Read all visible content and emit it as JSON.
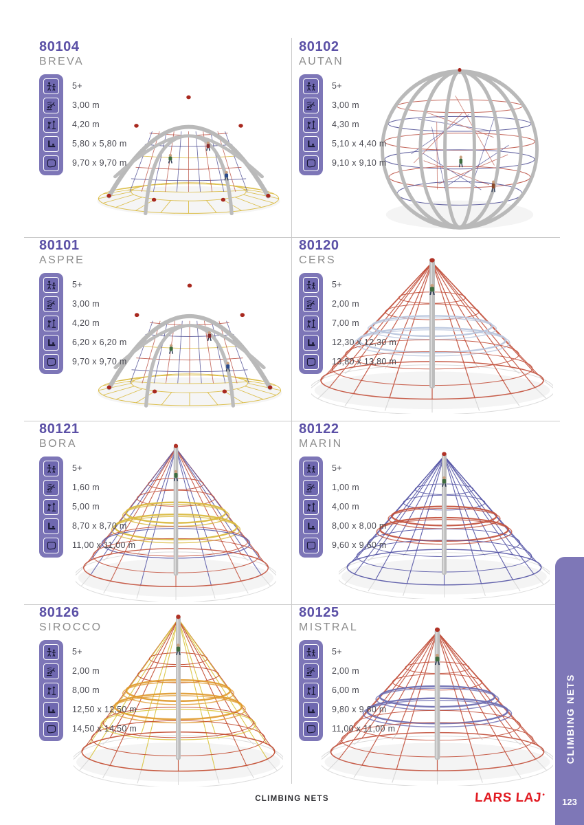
{
  "page": {
    "footer_label": "CLIMBING NETS",
    "side_tab_label": "CLIMBING NETS",
    "page_number": "123",
    "brand_logo": "LARS LAJ",
    "brand_mark": "•"
  },
  "colors": {
    "code_purple": "#5b50a6",
    "name_gray": "#8c8c8c",
    "strip_purple": "#7d76b7",
    "icon_square_purple": "#6f68b0",
    "sidebar_purple": "#7e77b7",
    "divider_gray": "#c9c9c9",
    "spec_text": "#4a4a52",
    "brand_red": "#e11b22"
  },
  "spec_icons": [
    {
      "name": "age-icon"
    },
    {
      "name": "fall-height-icon"
    },
    {
      "name": "total-height-icon"
    },
    {
      "name": "dimensions-icon"
    },
    {
      "name": "safety-zone-icon"
    }
  ],
  "products": [
    {
      "code": "80104",
      "name": "BREVA",
      "specs": [
        "5+",
        "3,00 m",
        "4,20 m",
        "5,80 x 5,80 m",
        "9,70 x 9,70 m"
      ],
      "image": {
        "type": "dome",
        "rope_colors": [
          "#b7483a",
          "#d9b93c",
          "#47478f"
        ]
      }
    },
    {
      "code": "80102",
      "name": "AUTAN",
      "specs": [
        "5+",
        "3,00 m",
        "4,30 m",
        "5,10 x 4,40 m",
        "9,10 x 9,10 m"
      ],
      "image": {
        "type": "sphere",
        "rope_colors": [
          "#b7483a",
          "#47478f"
        ]
      }
    },
    {
      "code": "80101",
      "name": "ASPRE",
      "specs": [
        "5+",
        "3,00 m",
        "4,20 m",
        "6,20 x 6,20 m",
        "9,70 x 9,70 m"
      ],
      "image": {
        "type": "dome",
        "rope_colors": [
          "#b7483a",
          "#d9b93c",
          "#47478f"
        ]
      }
    },
    {
      "code": "80120",
      "name": "CERS",
      "specs": [
        "5+",
        "2,00 m",
        "7,00 m",
        "12,30 x 12,30 m",
        "13,80 x 13,80 m"
      ],
      "image": {
        "type": "pyramid",
        "rope_colors": [
          "#c2503c",
          "#b9c6dd"
        ]
      }
    },
    {
      "code": "80121",
      "name": "BORA",
      "specs": [
        "5+",
        "1,60 m",
        "5,00 m",
        "8,70 x 8,70 m",
        "11,00 x 11,00 m"
      ],
      "image": {
        "type": "pyramid",
        "rope_colors": [
          "#c2503c",
          "#d9b93c",
          "#5a5aa8"
        ]
      }
    },
    {
      "code": "80122",
      "name": "MARIN",
      "specs": [
        "5+",
        "1,00 m",
        "4,00 m",
        "8,00 x 8,00 m",
        "9,60 x 9,60 m"
      ],
      "image": {
        "type": "pyramid",
        "rope_colors": [
          "#5252a4",
          "#c2503c"
        ]
      }
    },
    {
      "code": "80126",
      "name": "SIROCCO",
      "specs": [
        "5+",
        "2,00 m",
        "8,00 m",
        "12,50 x 12,50 m",
        "14,50 x 14,50 m"
      ],
      "image": {
        "type": "pyramid_tall",
        "rope_colors": [
          "#c24a2e",
          "#e09a2e",
          "#d9c43c"
        ]
      }
    },
    {
      "code": "80125",
      "name": "MISTRAL",
      "specs": [
        "5+",
        "2,00 m",
        "6,00 m",
        "9,80 x 9,80 m",
        "11,00 x 11,00 m"
      ],
      "image": {
        "type": "pyramid",
        "rope_colors": [
          "#c2503c",
          "#6a6ab0"
        ]
      }
    }
  ]
}
